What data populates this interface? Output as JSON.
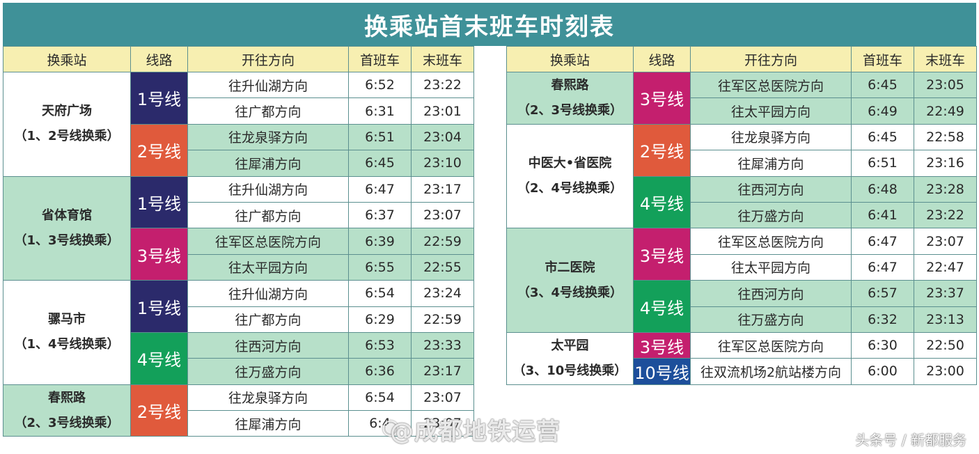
{
  "title": "换乘站首末班车时刻表",
  "headers": [
    "换乘站",
    "线路",
    "开往方向",
    "首班车",
    "末班车"
  ],
  "colors": {
    "line1": "#2b2a6b",
    "line2": "#e05a3c",
    "line3": "#c41f6e",
    "line4": "#13a05a",
    "line10": "#1d4f9b",
    "green_bg": "#b7e0c9",
    "header_bg": "#f7efb1",
    "title_bg": "#3f9198"
  },
  "left": [
    {
      "name": "天府广场",
      "sub": "（1、2号线换乘）",
      "bg": "white",
      "lines": [
        {
          "label": "1号线",
          "color": "line1",
          "bg": "white",
          "dirs": [
            {
              "dir": "往升仙湖方向",
              "first": "6:52",
              "last": "23:22"
            },
            {
              "dir": "往广都方向",
              "first": "6:31",
              "last": "23:01"
            }
          ]
        },
        {
          "label": "2号线",
          "color": "line2",
          "bg": "green",
          "dirs": [
            {
              "dir": "往龙泉驿方向",
              "first": "6:51",
              "last": "23:04"
            },
            {
              "dir": "往犀浦方向",
              "first": "6:45",
              "last": "23:10"
            }
          ]
        }
      ]
    },
    {
      "name": "省体育馆",
      "sub": "（1、3号线换乘）",
      "bg": "green",
      "lines": [
        {
          "label": "1号线",
          "color": "line1",
          "bg": "white",
          "dirs": [
            {
              "dir": "往升仙湖方向",
              "first": "6:47",
              "last": "23:17"
            },
            {
              "dir": "往广都方向",
              "first": "6:37",
              "last": "23:07"
            }
          ]
        },
        {
          "label": "3号线",
          "color": "line3",
          "bg": "green",
          "dirs": [
            {
              "dir": "往军区总医院方向",
              "first": "6:39",
              "last": "22:59"
            },
            {
              "dir": "往太平园方向",
              "first": "6:55",
              "last": "22:55"
            }
          ]
        }
      ]
    },
    {
      "name": "骡马市",
      "sub": "（1、4号线换乘）",
      "bg": "white",
      "lines": [
        {
          "label": "1号线",
          "color": "line1",
          "bg": "white",
          "dirs": [
            {
              "dir": "往升仙湖方向",
              "first": "6:54",
              "last": "23:24"
            },
            {
              "dir": "往广都方向",
              "first": "6:29",
              "last": "22:59"
            }
          ]
        },
        {
          "label": "4号线",
          "color": "line4",
          "bg": "green",
          "dirs": [
            {
              "dir": "往西河方向",
              "first": "6:53",
              "last": "23:33"
            },
            {
              "dir": "往万盛方向",
              "first": "6:36",
              "last": "23:17"
            }
          ]
        }
      ]
    },
    {
      "name": "春熙路",
      "sub": "（2、3号线换乘）",
      "bg": "green",
      "lines": [
        {
          "label": "2号线",
          "color": "line2",
          "bg": "white",
          "dirs": [
            {
              "dir": "往龙泉驿方向",
              "first": "6:54",
              "last": "23:07"
            },
            {
              "dir": "往犀浦方向",
              "first": "6:4",
              "last": "23:07"
            }
          ]
        }
      ]
    }
  ],
  "right": [
    {
      "name": "春熙路",
      "sub": "（2、3号线换乘）",
      "bg": "green",
      "lines": [
        {
          "label": "3号线",
          "color": "line3",
          "bg": "green",
          "dirs": [
            {
              "dir": "往军区总医院方向",
              "first": "6:45",
              "last": "23:05"
            },
            {
              "dir": "往太平园方向",
              "first": "6:49",
              "last": "22:49"
            }
          ]
        }
      ]
    },
    {
      "name": "中医大•省医院",
      "sub": "（2、4号线换乘）",
      "bg": "white",
      "lines": [
        {
          "label": "2号线",
          "color": "line2",
          "bg": "white",
          "dirs": [
            {
              "dir": "往龙泉驿方向",
              "first": "6:45",
              "last": "22:58"
            },
            {
              "dir": "往犀浦方向",
              "first": "6:51",
              "last": "23:16"
            }
          ]
        },
        {
          "label": "4号线",
          "color": "line4",
          "bg": "green",
          "dirs": [
            {
              "dir": "往西河方向",
              "first": "6:48",
              "last": "23:28"
            },
            {
              "dir": "往万盛方向",
              "first": "6:41",
              "last": "23:22"
            }
          ]
        }
      ]
    },
    {
      "name": "市二医院",
      "sub": "（3、4号线换乘）",
      "bg": "green",
      "lines": [
        {
          "label": "3号线",
          "color": "line3",
          "bg": "white",
          "dirs": [
            {
              "dir": "往军区总医院方向",
              "first": "6:47",
              "last": "23:07"
            },
            {
              "dir": "往太平园方向",
              "first": "6:47",
              "last": "22:47"
            }
          ]
        },
        {
          "label": "4号线",
          "color": "line4",
          "bg": "green",
          "dirs": [
            {
              "dir": "往西河方向",
              "first": "6:57",
              "last": "23:37"
            },
            {
              "dir": "往万盛方向",
              "first": "6:32",
              "last": "23:13"
            }
          ]
        }
      ]
    },
    {
      "name": "太平园",
      "sub": "（3、10号线换乘）",
      "bg": "white",
      "lines": [
        {
          "label": "3号线",
          "color": "line3",
          "bg": "white",
          "dirs": [
            {
              "dir": "往军区总医院方向",
              "first": "6:30",
              "last": "22:50"
            }
          ]
        },
        {
          "label": "10号线",
          "color": "line10",
          "bg": "white",
          "dirs": [
            {
              "dir": "往双流机场2航站楼方向",
              "first": "6:00",
              "last": "23:00"
            }
          ]
        }
      ]
    }
  ],
  "watermark": "@成都地铁运营",
  "source": "头条号 / 新都服务"
}
